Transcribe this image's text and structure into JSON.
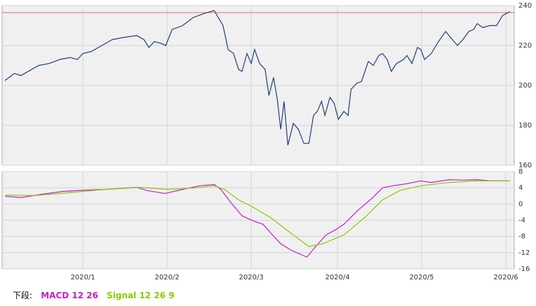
{
  "chart_data": [
    {
      "type": "line",
      "xlim": [
        -0.7,
        121
      ],
      "xticks": [
        18.5,
        38.5,
        58.5,
        79,
        99,
        119
      ],
      "ylim": [
        160,
        240
      ],
      "yticks": [
        160,
        180,
        200,
        220,
        240
      ],
      "grid": true,
      "reference_line": {
        "value": 236.5,
        "color": "#e88a8a"
      },
      "series": [
        {
          "color": "#1f3f7f",
          "x": [
            0,
            2.2,
            3.8,
            6.3,
            8,
            10.5,
            13,
            15.5,
            17.2,
            18.5,
            20.5,
            23,
            25.5,
            28,
            31.3,
            33,
            34.2,
            35.5,
            37.2,
            38.2,
            39.7,
            42.2,
            44.7,
            47.2,
            49.7,
            51.8,
            53,
            54.3,
            55.5,
            56.3,
            57.5,
            58.5,
            59.3,
            60.5,
            61.8,
            62.7,
            63.8,
            64.7,
            65.5,
            66.3,
            67.2,
            68.5,
            69.7,
            71,
            72.2,
            73.3,
            74.2,
            75.2,
            76,
            77.2,
            78.2,
            79.2,
            80.5,
            81.5,
            82.2,
            83.5,
            84.7,
            86.3,
            87.5,
            88.8,
            89.7,
            90.8,
            91.8,
            93,
            94.7,
            95.5,
            96.7,
            98,
            98.8,
            99.7,
            101.3,
            103,
            104.7,
            106.3,
            107.5,
            108.8,
            110.2,
            111.3,
            112.2,
            113.5,
            115.2,
            116.8,
            118.2,
            120
          ],
          "values": [
            202.5,
            206,
            205,
            208,
            210,
            211,
            213,
            214,
            213,
            216,
            217,
            220,
            223,
            224,
            225,
            223,
            219,
            222,
            221,
            220,
            228,
            230,
            234,
            236,
            237.5,
            230,
            218,
            216,
            208,
            207,
            216,
            211,
            218,
            211,
            208,
            195,
            204,
            193,
            178,
            192,
            170,
            181,
            178,
            171,
            171,
            185,
            187,
            192,
            185,
            194,
            191,
            183,
            187,
            185,
            198,
            201,
            202,
            212,
            210,
            215,
            216,
            213,
            207,
            211,
            213,
            215,
            211,
            219,
            218,
            213,
            216,
            222,
            227,
            223,
            220,
            223,
            227,
            228,
            231,
            229,
            230,
            230,
            235,
            237
          ]
        }
      ]
    },
    {
      "type": "line",
      "xlim": [
        -0.7,
        121
      ],
      "xticks": [
        {
          "value": 18.5,
          "label": "2020/1"
        },
        {
          "value": 38.5,
          "label": "2020/2"
        },
        {
          "value": 58.5,
          "label": "2020/3"
        },
        {
          "value": 79,
          "label": "2020/4"
        },
        {
          "value": 99,
          "label": "2020/5"
        },
        {
          "value": 119,
          "label": "2020/6"
        }
      ],
      "ylim": [
        -16,
        8
      ],
      "yticks": [
        -16,
        -12,
        -8,
        -4,
        0,
        4,
        8
      ],
      "grid": true,
      "legend_title": "下段:",
      "series": [
        {
          "name": "MACD 12 26",
          "color": "#c020c8",
          "x": [
            0,
            3.8,
            8.8,
            13.8,
            18.8,
            23.8,
            31.3,
            33.8,
            38,
            42.2,
            46.3,
            49.7,
            51.3,
            53.8,
            56.3,
            58.8,
            61.3,
            63,
            65.5,
            68,
            71.7,
            73.8,
            76.3,
            78.8,
            80.5,
            83.8,
            87.2,
            89.7,
            92.2,
            95.5,
            98.8,
            101.3,
            105.5,
            108.8,
            112.2,
            115.5,
            120
          ],
          "values": [
            1.9,
            1.6,
            2.4,
            3.1,
            3.4,
            3.6,
            4.1,
            3.3,
            2.6,
            3.6,
            4.5,
            4.8,
            3.6,
            0.2,
            -2.9,
            -4.1,
            -5,
            -7,
            -9.8,
            -11.4,
            -13.1,
            -10.5,
            -7.6,
            -6.2,
            -5,
            -1.6,
            1.4,
            4,
            4.5,
            5,
            5.7,
            5.3,
            6,
            5.9,
            6,
            5.7,
            5.7
          ]
        },
        {
          "name": "Signal 12 26 9",
          "color": "#8cc800",
          "x": [
            0,
            7.2,
            15.5,
            23.8,
            32.2,
            38.8,
            45.5,
            49.7,
            52.2,
            55.5,
            58.8,
            63,
            67.2,
            72.2,
            75.5,
            80.5,
            85.5,
            89.7,
            93.8,
            98.8,
            105.5,
            112.2,
            120
          ],
          "values": [
            2.2,
            2.1,
            2.8,
            3.6,
            4.1,
            3.6,
            4,
            4.5,
            3.6,
            1,
            -0.7,
            -3.3,
            -6.6,
            -10.5,
            -9.8,
            -7.6,
            -3.3,
            1,
            3.3,
            4.5,
            5.3,
            5.7,
            5.7
          ]
        }
      ]
    }
  ]
}
